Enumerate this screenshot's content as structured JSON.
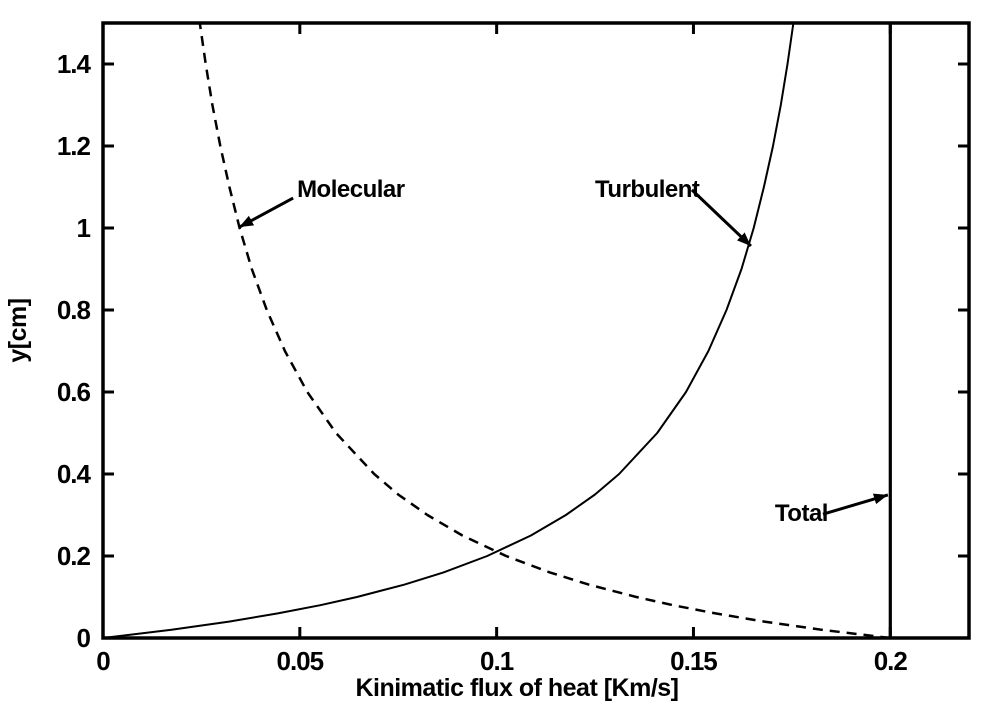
{
  "figure": {
    "background": "#ffffff",
    "foreground": "#000000"
  },
  "chart_data": {
    "type": "line",
    "title": "",
    "xlabel": "Kinimatic flux of heat [Km/s]",
    "ylabel": "y[cm]",
    "xlim": [
      0,
      0.22
    ],
    "ylim": [
      0,
      1.5
    ],
    "grid": false,
    "legend_position": "none (arrow annotations inline)",
    "color": "#000000",
    "x_ticks": {
      "values": [
        0,
        0.05,
        0.1,
        0.15,
        0.2
      ],
      "labels": [
        "0",
        "0.05",
        "0.1",
        "0.15",
        "0.2"
      ]
    },
    "y_ticks": {
      "values": [
        0,
        0.2,
        0.4,
        0.6,
        0.8,
        1.0,
        1.2,
        1.4
      ],
      "labels": [
        "0",
        "0.2",
        "0.4",
        "0.6",
        "0.8",
        "1",
        "1.2",
        "1.4"
      ]
    },
    "series": [
      {
        "name": "Molecular",
        "line_style": "dashed",
        "line_width": 2.5,
        "color": "#000000",
        "points": [
          [
            0.2,
            0
          ],
          [
            0.1826,
            0.02
          ],
          [
            0.168,
            0.04
          ],
          [
            0.1556,
            0.06
          ],
          [
            0.1448,
            0.08
          ],
          [
            0.1355,
            0.1
          ],
          [
            0.1235,
            0.13
          ],
          [
            0.1135,
            0.16
          ],
          [
            0.1024,
            0.2
          ],
          [
            0.0913,
            0.25
          ],
          [
            0.0824,
            0.3
          ],
          [
            0.075,
            0.35
          ],
          [
            0.0689,
            0.4
          ],
          [
            0.0592,
            0.5
          ],
          [
            0.0519,
            0.6
          ],
          [
            0.0462,
            0.7
          ],
          [
            0.0416,
            0.8
          ],
          [
            0.0378,
            0.9
          ],
          [
            0.0347,
            1.0
          ],
          [
            0.0321,
            1.1
          ],
          [
            0.0298,
            1.2
          ],
          [
            0.0278,
            1.3
          ],
          [
            0.0261,
            1.4
          ],
          [
            0.0246,
            1.5
          ]
        ]
      },
      {
        "name": "Turbulent",
        "line_style": "solid",
        "line_width": 2,
        "color": "#000000",
        "points": [
          [
            0,
            0
          ],
          [
            0.0174,
            0.02
          ],
          [
            0.032,
            0.04
          ],
          [
            0.0444,
            0.06
          ],
          [
            0.0552,
            0.08
          ],
          [
            0.0645,
            0.1
          ],
          [
            0.0765,
            0.13
          ],
          [
            0.0865,
            0.16
          ],
          [
            0.0976,
            0.2
          ],
          [
            0.1087,
            0.25
          ],
          [
            0.1176,
            0.3
          ],
          [
            0.125,
            0.35
          ],
          [
            0.1311,
            0.4
          ],
          [
            0.1408,
            0.5
          ],
          [
            0.1481,
            0.6
          ],
          [
            0.1538,
            0.7
          ],
          [
            0.1584,
            0.8
          ],
          [
            0.1622,
            0.9
          ],
          [
            0.1653,
            1.0
          ],
          [
            0.1679,
            1.1
          ],
          [
            0.1702,
            1.2
          ],
          [
            0.1722,
            1.3
          ],
          [
            0.1739,
            1.4
          ],
          [
            0.1754,
            1.5
          ]
        ]
      },
      {
        "name": "Total",
        "line_style": "solid",
        "line_width": 3.2,
        "color": "#000000",
        "points": [
          [
            0.2,
            0
          ],
          [
            0.2,
            1.5
          ]
        ]
      }
    ],
    "annotations": [
      {
        "text": "Molecular",
        "text_x": 0.0493,
        "text_y": 1.1,
        "arrow_from": [
          0.0483,
          1.073
        ],
        "arrow_to": [
          0.0346,
          1.002
        ]
      },
      {
        "text": "Turbulent",
        "text_x": 0.125,
        "text_y": 1.1,
        "arrow_from": [
          0.1496,
          1.093
        ],
        "arrow_to": [
          0.1646,
          0.956
        ]
      },
      {
        "text": "Total",
        "text_x": 0.1707,
        "text_y": 0.31,
        "arrow_from": [
          0.1829,
          0.302
        ],
        "arrow_to": [
          0.1994,
          0.349
        ]
      }
    ]
  }
}
